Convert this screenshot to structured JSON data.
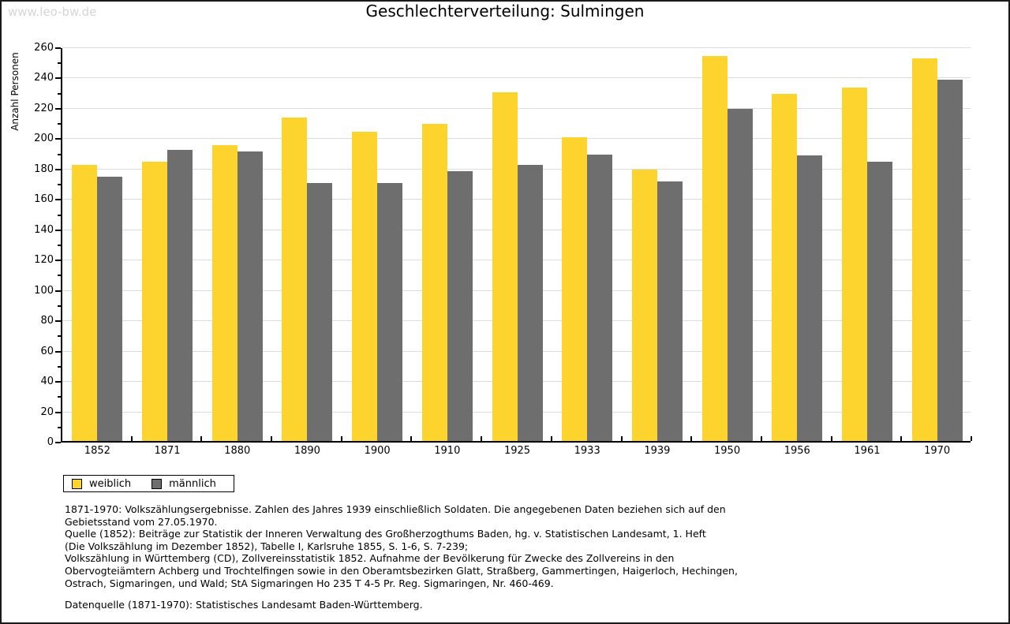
{
  "watermark": "www.leo-bw.de",
  "header": {
    "title": "Geschlechterverteilung: Sulmingen"
  },
  "chart_data": {
    "type": "bar",
    "title": "Geschlechterverteilung: Sulmingen",
    "xlabel": "",
    "ylabel": "Anzahl Personen",
    "categories": [
      "1852",
      "1871",
      "1880",
      "1890",
      "1900",
      "1910",
      "1925",
      "1933",
      "1939",
      "1950",
      "1956",
      "1961",
      "1970"
    ],
    "series": [
      {
        "name": "weiblich",
        "color": "#FDD32E",
        "values": [
          182,
          184,
          195,
          213,
          204,
          209,
          230,
          200,
          179,
          254,
          229,
          233,
          252
        ]
      },
      {
        "name": "männlich",
        "color": "#6E6E6E",
        "values": [
          174,
          192,
          191,
          170,
          170,
          178,
          182,
          189,
          171,
          219,
          188,
          184,
          238
        ]
      }
    ],
    "ylim": [
      0,
      260
    ],
    "ytick_step": 20,
    "yticks": [
      0,
      20,
      40,
      60,
      80,
      100,
      120,
      140,
      160,
      180,
      200,
      220,
      240,
      260
    ],
    "grid": true,
    "legend_position": "bottom-left"
  },
  "colors": {
    "weiblich": "#FDD32E",
    "männlich": "#6E6E6E",
    "gridline": "#dcdcdc",
    "axis": "#000000",
    "watermark": "#d6d6d6"
  },
  "footnotes": {
    "lines": [
      "1871-1970: Volkszählungsergebnisse. Zahlen des Jahres 1939 einschließlich Soldaten. Die angegebenen Daten beziehen sich auf den",
      "Gebietsstand vom 27.05.1970.",
      "Quelle (1852): Beiträge zur Statistik der Inneren Verwaltung des Großherzogthums Baden, hg. v. Statistischen Landesamt, 1. Heft",
      "(Die Volkszählung im Dezember 1852), Tabelle I, Karlsruhe 1855, S. 1-6, S. 7-239;",
      "Volkszählung in Württemberg (CD), Zollvereinsstatistik 1852. Aufnahme der Bevölkerung für Zwecke des Zollvereins in den",
      "Obervogteiämtern Achberg und Trochtelfingen sowie in den Oberamtsbezirken Glatt, Straßberg, Gammertingen, Haigerloch, Hechingen,",
      "Ostrach, Sigmaringen, und Wald; StA Sigmaringen Ho 235 T 4-5 Pr. Reg. Sigmaringen, Nr. 460-469."
    ],
    "datasource": "Datenquelle (1871-1970): Statistisches Landesamt Baden-Württemberg."
  }
}
